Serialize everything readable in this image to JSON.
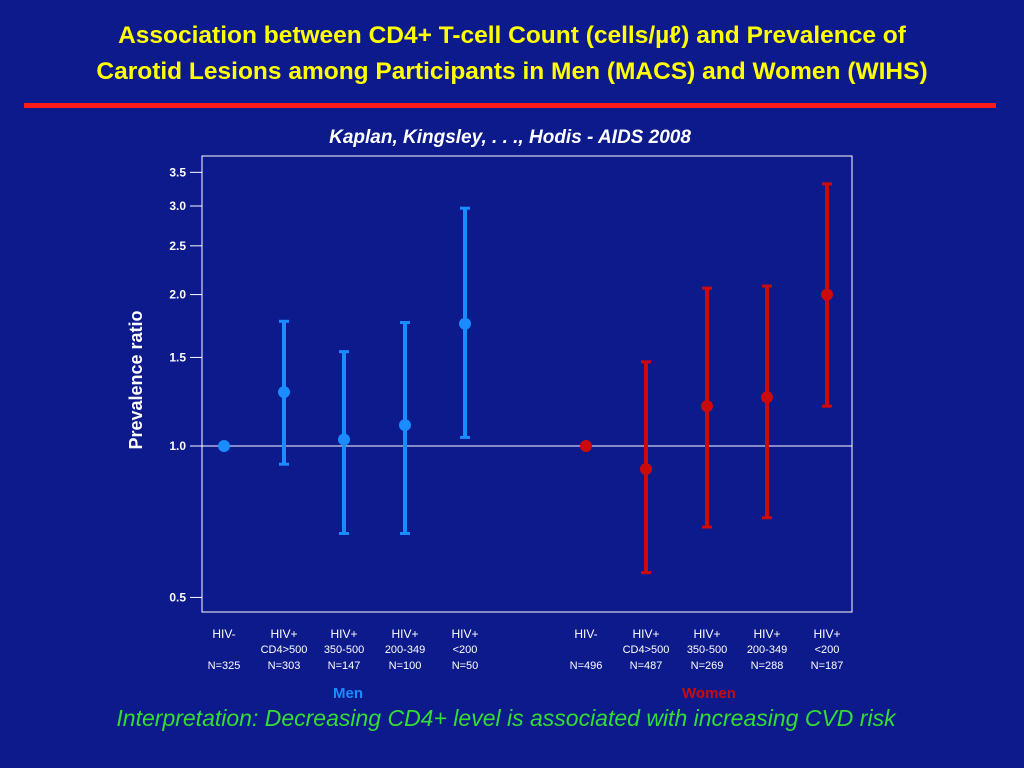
{
  "slide": {
    "title_line1": "Association between CD4+ T-cell Count (cells/µℓ) and Prevalence of",
    "title_line2": "Carotid Lesions among Participants in Men (MACS) and Women (WIHS)",
    "citation": "Kaplan, Kingsley, . . ., Hodis  -  AIDS 2008",
    "interpretation": "Interpretation: Decreasing CD4+ level is associated with increasing CVD risk"
  },
  "colors": {
    "background": "#0c1a8c",
    "title": "#ffff00",
    "rule": "#ff1a1a",
    "men": "#1a8cff",
    "women": "#cc0a0a",
    "interpretation": "#33dd33"
  },
  "chart_data": {
    "type": "scatter",
    "ylabel": "Prevalence ratio",
    "yscale": "log",
    "ylim": [
      0.47,
      3.6
    ],
    "yticks": [
      0.5,
      1.0,
      1.5,
      2.0,
      2.5,
      3.0,
      3.5
    ],
    "ytick_labels": [
      "0.5",
      "1.0",
      "1.5",
      "2.0",
      "2.5",
      "3.0",
      "3.5"
    ],
    "reference_line": 1.0,
    "groups": [
      {
        "name": "Men",
        "color": "#1a8cff",
        "points": [
          {
            "line1": "HIV-",
            "line2": "",
            "n": "N=325",
            "value": 1.0,
            "lower": null,
            "upper": null
          },
          {
            "line1": "HIV+",
            "line2": "CD4>500",
            "n": "N=303",
            "value": 1.28,
            "lower": 0.92,
            "upper": 1.77
          },
          {
            "line1": "HIV+",
            "line2": "350-500",
            "n": "N=147",
            "value": 1.03,
            "lower": 0.67,
            "upper": 1.54
          },
          {
            "line1": "HIV+",
            "line2": "200-349",
            "n": "N=100",
            "value": 1.1,
            "lower": 0.67,
            "upper": 1.76
          },
          {
            "line1": "HIV+",
            "line2": "<200",
            "n": "N=50",
            "value": 1.75,
            "lower": 1.04,
            "upper": 2.97
          }
        ]
      },
      {
        "name": "Women",
        "color": "#cc0a0a",
        "points": [
          {
            "line1": "HIV-",
            "line2": "",
            "n": "N=496",
            "value": 1.0,
            "lower": null,
            "upper": null
          },
          {
            "line1": "HIV+",
            "line2": "CD4>500",
            "n": "N=487",
            "value": 0.9,
            "lower": 0.56,
            "upper": 1.47
          },
          {
            "line1": "HIV+",
            "line2": "350-500",
            "n": "N=269",
            "value": 1.2,
            "lower": 0.69,
            "upper": 2.06
          },
          {
            "line1": "HIV+",
            "line2": "200-349",
            "n": "N=288",
            "value": 1.25,
            "lower": 0.72,
            "upper": 2.08
          },
          {
            "line1": "HIV+",
            "line2": "<200",
            "n": "N=187",
            "value": 2.0,
            "lower": 1.2,
            "upper": 3.32
          }
        ]
      }
    ]
  }
}
